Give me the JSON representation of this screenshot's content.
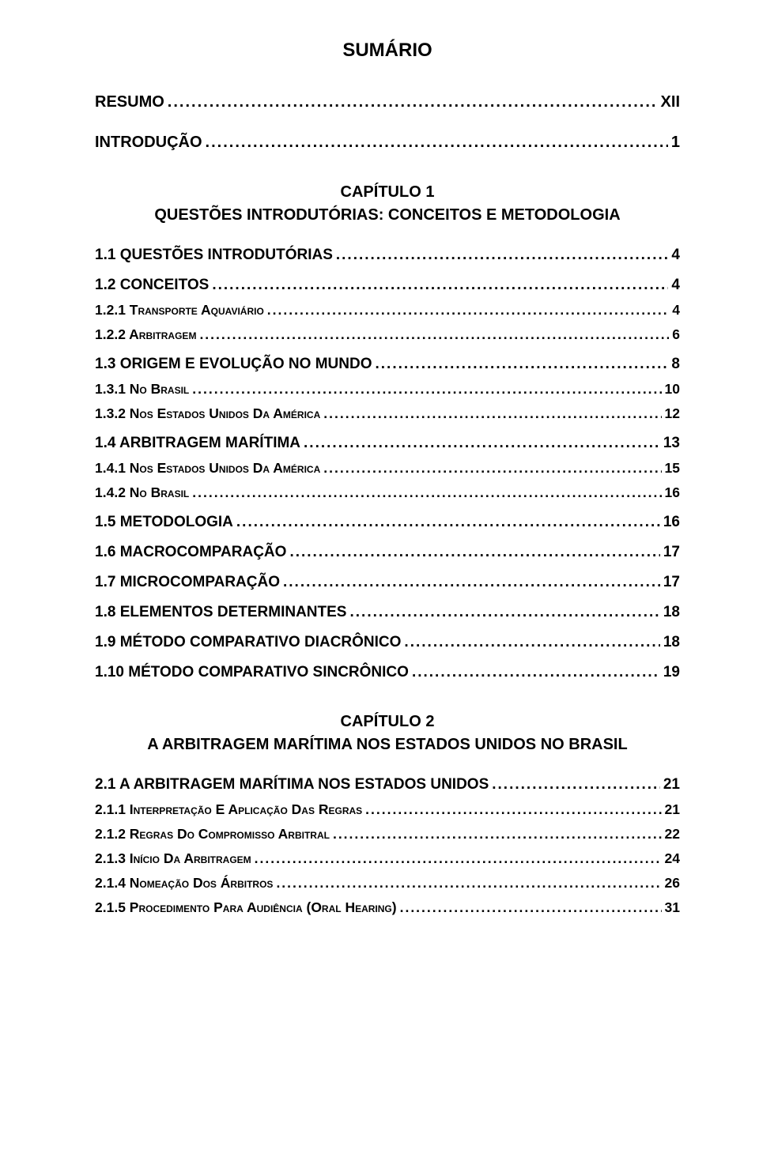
{
  "page": {
    "background_color": "#ffffff",
    "text_color": "#000000",
    "base_font_family": "Arial, Helvetica, sans-serif",
    "title_fontsize_pt": 18,
    "level_top_fontsize_pt": 15,
    "level_sec_fontsize_pt": 14,
    "level_sub_fontsize_pt": 13
  },
  "title": "SUMÁRIO",
  "top_entries": [
    {
      "label": "RESUMO",
      "page": "XII"
    },
    {
      "label": "INTRODUÇÃO",
      "page": "1"
    }
  ],
  "chapters": [
    {
      "heading": "CAPÍTULO 1",
      "subtitle": "QUESTÕES INTRODUTÓRIAS: CONCEITOS E METODOLOGIA",
      "entries": [
        {
          "lvl": "sec",
          "label": "1.1 QUESTÕES INTRODUTÓRIAS",
          "page": "4"
        },
        {
          "lvl": "sec",
          "label": "1.2 CONCEITOS",
          "page": "4"
        },
        {
          "lvl": "sub",
          "label": "1.2.1 TRANSPORTE AQUAVIÁRIO",
          "page": "4",
          "sc": true
        },
        {
          "lvl": "sub",
          "label": "1.2.2 ARBITRAGEM",
          "page": "6",
          "sc": true
        },
        {
          "lvl": "sec",
          "label": "1.3 ORIGEM E EVOLUÇÃO NO MUNDO",
          "page": "8"
        },
        {
          "lvl": "sub",
          "label": "1.3.1 NO BRASIL",
          "page": "10",
          "sc": true
        },
        {
          "lvl": "sub",
          "label": "1.3.2 NOS ESTADOS UNIDOS DA AMÉRICA",
          "page": "12",
          "sc": true
        },
        {
          "lvl": "sec",
          "label": "1.4 ARBITRAGEM MARÍTIMA",
          "page": "13"
        },
        {
          "lvl": "sub",
          "label": "1.4.1 NOS ESTADOS UNIDOS DA AMÉRICA",
          "page": "15",
          "sc": true
        },
        {
          "lvl": "sub",
          "label": "1.4.2 NO BRASIL",
          "page": "16",
          "sc": true
        },
        {
          "lvl": "sec",
          "label": "1.5 METODOLOGIA",
          "page": "16"
        },
        {
          "lvl": "sec",
          "label": "1.6 MACROCOMPARAÇÃO",
          "page": "17"
        },
        {
          "lvl": "sec",
          "label": "1.7 MICROCOMPARAÇÃO",
          "page": "17"
        },
        {
          "lvl": "sec",
          "label": "1.8 ELEMENTOS DETERMINANTES",
          "page": "18"
        },
        {
          "lvl": "sec",
          "label": "1.9 MÉTODO COMPARATIVO DIACRÔNICO",
          "page": "18"
        },
        {
          "lvl": "sec",
          "label": "1.10 MÉTODO COMPARATIVO SINCRÔNICO",
          "page": "19"
        }
      ]
    },
    {
      "heading": "CAPÍTULO 2",
      "subtitle": "A ARBITRAGEM MARÍTIMA NOS ESTADOS UNIDOS NO BRASIL",
      "entries": [
        {
          "lvl": "sec",
          "label": "2.1 A ARBITRAGEM MARÍTIMA NOS ESTADOS UNIDOS",
          "page": "21"
        },
        {
          "lvl": "sub",
          "label": "2.1.1 INTERPRETAÇÃO E APLICAÇÃO DAS REGRAS",
          "page": "21",
          "sc": true
        },
        {
          "lvl": "sub",
          "label": "2.1.2 REGRAS DO COMPROMISSO ARBITRAL",
          "page": "22",
          "sc": true
        },
        {
          "lvl": "sub",
          "label": "2.1.3 INÍCIO DA ARBITRAGEM",
          "page": "24",
          "sc": true
        },
        {
          "lvl": "sub",
          "label": "2.1.4 NOMEAÇÃO DOS ÁRBITROS",
          "page": "26",
          "sc": true
        },
        {
          "lvl": "sub",
          "label": "2.1.5 PROCEDIMENTO PARA AUDIÊNCIA (ORAL HEARING)",
          "page": "31",
          "sc": true
        }
      ]
    }
  ]
}
